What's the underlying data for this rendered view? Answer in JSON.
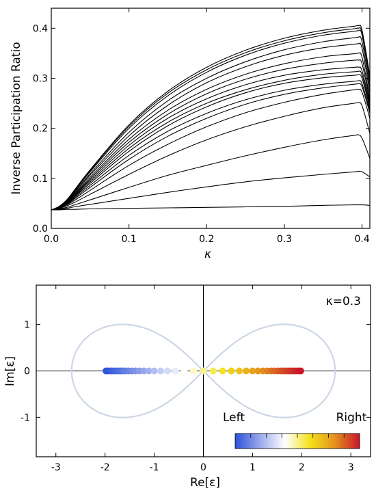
{
  "chart_data": [
    {
      "type": "line",
      "title": "",
      "xlabel": "κ",
      "ylabel": "Inverse Participation Ratio",
      "xlim": [
        0.0,
        0.41
      ],
      "ylim": [
        0.0,
        0.44
      ],
      "xticks": [
        0.0,
        0.1,
        0.2,
        0.3,
        0.4
      ],
      "xtick_labels": [
        "0.0",
        "0.1",
        "0.2",
        "0.3",
        "0.4"
      ],
      "yticks": [
        0.0,
        0.1,
        0.2,
        0.3,
        0.4
      ],
      "ytick_labels": [
        "0.0",
        "0.1",
        "0.2",
        "0.3",
        "0.4"
      ],
      "grid": false,
      "x": [
        0.0,
        0.01,
        0.02,
        0.03,
        0.05,
        0.1,
        0.15,
        0.2,
        0.25,
        0.3,
        0.35,
        0.39,
        0.395,
        0.4,
        0.41
      ],
      "series": [
        {
          "values": [
            0.037,
            0.037,
            0.038,
            0.038,
            0.039,
            0.04,
            0.041,
            0.042,
            0.043,
            0.044,
            0.046,
            0.047,
            0.047,
            0.047,
            0.046
          ]
        },
        {
          "values": [
            0.037,
            0.038,
            0.04,
            0.043,
            0.048,
            0.06,
            0.072,
            0.083,
            0.093,
            0.101,
            0.108,
            0.113,
            0.114,
            0.113,
            0.103
          ]
        },
        {
          "values": [
            0.037,
            0.039,
            0.042,
            0.047,
            0.057,
            0.082,
            0.106,
            0.126,
            0.145,
            0.162,
            0.177,
            0.186,
            0.187,
            0.18,
            0.14
          ]
        },
        {
          "values": [
            0.037,
            0.04,
            0.045,
            0.052,
            0.068,
            0.108,
            0.145,
            0.177,
            0.203,
            0.224,
            0.241,
            0.25,
            0.251,
            0.245,
            0.19
          ]
        },
        {
          "values": [
            0.037,
            0.04,
            0.047,
            0.056,
            0.076,
            0.126,
            0.168,
            0.203,
            0.231,
            0.252,
            0.268,
            0.277,
            0.278,
            0.272,
            0.22
          ]
        },
        {
          "values": [
            0.037,
            0.041,
            0.048,
            0.059,
            0.082,
            0.138,
            0.184,
            0.22,
            0.248,
            0.268,
            0.281,
            0.288,
            0.289,
            0.283,
            0.23
          ]
        },
        {
          "values": [
            0.037,
            0.041,
            0.049,
            0.061,
            0.086,
            0.146,
            0.194,
            0.23,
            0.257,
            0.276,
            0.288,
            0.294,
            0.295,
            0.289,
            0.235
          ]
        },
        {
          "values": [
            0.037,
            0.041,
            0.05,
            0.063,
            0.09,
            0.154,
            0.205,
            0.243,
            0.271,
            0.29,
            0.301,
            0.306,
            0.307,
            0.3,
            0.24
          ]
        },
        {
          "values": [
            0.037,
            0.042,
            0.051,
            0.064,
            0.093,
            0.16,
            0.212,
            0.25,
            0.277,
            0.296,
            0.308,
            0.313,
            0.314,
            0.307,
            0.245
          ]
        },
        {
          "values": [
            0.037,
            0.042,
            0.051,
            0.066,
            0.096,
            0.166,
            0.22,
            0.259,
            0.287,
            0.306,
            0.317,
            0.322,
            0.322,
            0.315,
            0.25
          ]
        },
        {
          "values": [
            0.037,
            0.042,
            0.052,
            0.067,
            0.099,
            0.172,
            0.228,
            0.269,
            0.298,
            0.318,
            0.33,
            0.336,
            0.336,
            0.329,
            0.255
          ]
        },
        {
          "values": [
            0.037,
            0.042,
            0.053,
            0.069,
            0.102,
            0.178,
            0.236,
            0.278,
            0.308,
            0.329,
            0.343,
            0.349,
            0.35,
            0.342,
            0.26
          ]
        },
        {
          "values": [
            0.037,
            0.043,
            0.054,
            0.071,
            0.106,
            0.185,
            0.246,
            0.291,
            0.323,
            0.346,
            0.361,
            0.368,
            0.369,
            0.36,
            0.27
          ]
        },
        {
          "values": [
            0.037,
            0.043,
            0.055,
            0.073,
            0.109,
            0.192,
            0.255,
            0.3,
            0.333,
            0.357,
            0.373,
            0.381,
            0.382,
            0.373,
            0.28
          ]
        },
        {
          "values": [
            0.037,
            0.043,
            0.056,
            0.075,
            0.113,
            0.2,
            0.265,
            0.312,
            0.346,
            0.37,
            0.386,
            0.394,
            0.395,
            0.386,
            0.29
          ]
        },
        {
          "values": [
            0.037,
            0.043,
            0.057,
            0.076,
            0.115,
            0.204,
            0.27,
            0.317,
            0.351,
            0.375,
            0.391,
            0.399,
            0.4,
            0.391,
            0.3
          ]
        },
        {
          "values": [
            0.037,
            0.044,
            0.057,
            0.077,
            0.117,
            0.207,
            0.274,
            0.322,
            0.356,
            0.38,
            0.396,
            0.404,
            0.405,
            0.396,
            0.305
          ]
        }
      ]
    },
    {
      "type": "scatter",
      "title": "",
      "xlabel": "Re[ε]",
      "ylabel": "Im[ε]",
      "annotation": "κ=0.3",
      "xlim": [
        -3.4,
        3.4
      ],
      "ylim": [
        -1.85,
        1.85
      ],
      "xticks": [
        -3,
        -2,
        -1,
        0,
        1,
        2,
        3
      ],
      "xtick_labels": [
        "-3",
        "-2",
        "-1",
        "0",
        "1",
        "2",
        "3"
      ],
      "yticks": [
        -1,
        0,
        1
      ],
      "ytick_labels": [
        "-1",
        "0",
        "1"
      ],
      "grid": false,
      "lemniscate_color": "#ccd6e6",
      "points": {
        "x": [
          -1.98,
          -1.93,
          -1.88,
          -1.83,
          -1.78,
          -1.73,
          -1.68,
          -1.63,
          -1.58,
          -1.52,
          -1.45,
          -1.38,
          -1.3,
          -1.21,
          -1.11,
          -1.0,
          -0.87,
          -0.73,
          -0.57,
          -0.39,
          -0.2,
          0.0,
          0.2,
          0.39,
          0.57,
          0.73,
          0.87,
          1.0,
          1.11,
          1.21,
          1.3,
          1.38,
          1.45,
          1.52,
          1.58,
          1.63,
          1.68,
          1.73,
          1.78,
          1.83,
          1.88,
          1.93,
          1.98
        ],
        "y": [
          0,
          0,
          0,
          0,
          0,
          0,
          0,
          0,
          0,
          0,
          0,
          0,
          0,
          0,
          0,
          0,
          0,
          0,
          0,
          0,
          0,
          0,
          0,
          0,
          0,
          0,
          0,
          0,
          0,
          0,
          0,
          0,
          0,
          0,
          0,
          0,
          0,
          0,
          0,
          0,
          0,
          0,
          0
        ]
      },
      "colorbar": {
        "left_label": "Left",
        "right_label": "Right",
        "colors": [
          "#2a52d9",
          "#9aa9ec",
          "#ffffff",
          "#f4e21b",
          "#e4911e",
          "#c9162b"
        ],
        "ticks": 8
      }
    }
  ]
}
